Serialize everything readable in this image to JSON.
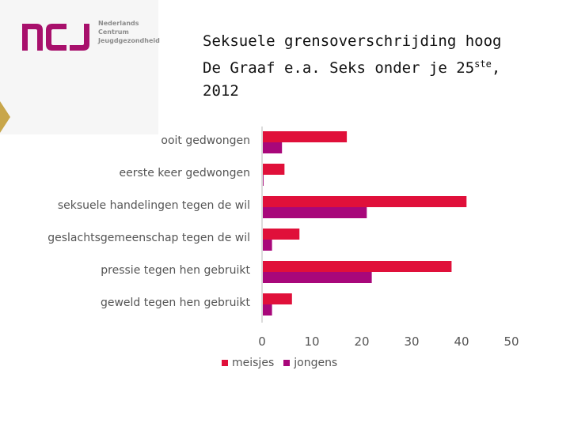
{
  "logo": {
    "mark": "ncj",
    "lines": [
      "Nederlands",
      "Centrum",
      "Jeugdgezondheid"
    ]
  },
  "title": {
    "line1": "Seksuele grensoverschrijding hoog",
    "line2_main": "De Graaf e.a. Seks onder je 25",
    "line2_sup": "ste",
    "line2_end": ",",
    "line3": "2012"
  },
  "colors": {
    "meisjes": "#e0103a",
    "jongens": "#a8077a",
    "axis": "#cfcfcf",
    "label": "#555555",
    "logo": "#a8106c"
  },
  "chart_data": {
    "type": "bar",
    "orientation": "horizontal",
    "categories": [
      "ooit gedwongen",
      "eerste keer gedwongen",
      "seksuele handelingen tegen de wil",
      "geslachtsgemeenschap tegen de wil",
      "pressie tegen hen gebruikt",
      "geweld tegen hen gebruikt"
    ],
    "series": [
      {
        "name": "meisjes",
        "values": [
          17,
          4.5,
          41,
          7.5,
          38,
          6
        ]
      },
      {
        "name": "jongens",
        "values": [
          4,
          0.3,
          21,
          2,
          22,
          2
        ]
      }
    ],
    "xlim": [
      0,
      50
    ],
    "xticks": [
      "0",
      "10",
      "20",
      "30",
      "40",
      "50"
    ],
    "grid": false,
    "legend_position": "bottom"
  }
}
